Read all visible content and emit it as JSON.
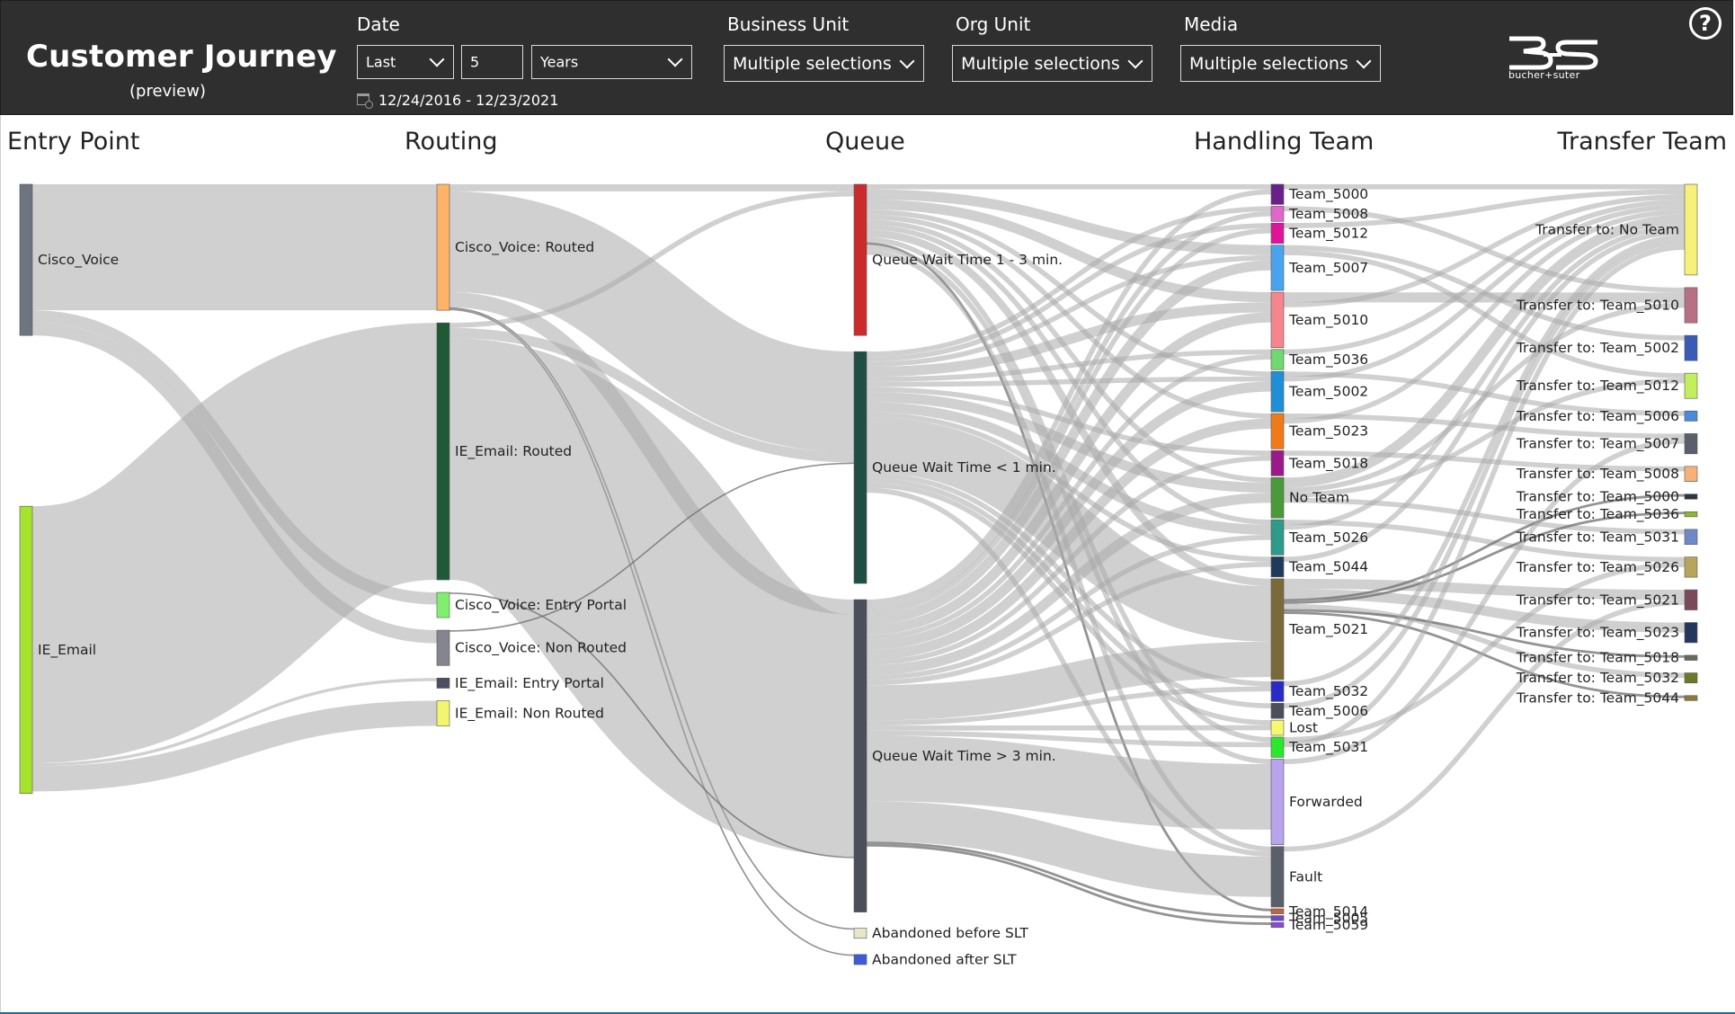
{
  "header": {
    "title": "Customer Journey",
    "subtitle": "(preview)",
    "date_label": "Date",
    "date_mode": "Last",
    "date_count": "5",
    "date_unit": "Years",
    "date_range": "12/24/2016 - 12/23/2021",
    "business_unit_label": "Business Unit",
    "business_unit_value": "Multiple selections",
    "org_unit_label": "Org Unit",
    "org_unit_value": "Multiple selections",
    "media_label": "Media",
    "media_value": "Multiple selections",
    "logo_text": "bucher+suter",
    "help_icon": "question-circle-icon"
  },
  "colors": {
    "header_bg": "#2f2f2f",
    "link": "#7d7d7d"
  },
  "chart_data": {
    "type": "sankey",
    "columns": [
      "Entry Point",
      "Routing",
      "Queue",
      "Handling Team",
      "Transfer Team"
    ],
    "nodes": [
      {
        "id": "cisco_voice",
        "label": "Cisco_Voice",
        "col": 0,
        "value": 30,
        "color": "#6e7480"
      },
      {
        "id": "ie_email",
        "label": "IE_Email",
        "col": 0,
        "value": 57,
        "color": "#a6e22e"
      },
      {
        "id": "r_cv_routed",
        "label": "Cisco_Voice: Routed",
        "col": 1,
        "value": 25,
        "color": "#ffb366"
      },
      {
        "id": "r_ie_routed",
        "label": "IE_Email: Routed",
        "col": 1,
        "value": 51,
        "color": "#1f5a36"
      },
      {
        "id": "r_cv_portal",
        "label": "Cisco_Voice: Entry Portal",
        "col": 1,
        "value": 5,
        "color": "#7ef06e"
      },
      {
        "id": "r_cv_nonrouted",
        "label": "Cisco_Voice: Non Routed",
        "col": 1,
        "value": 7,
        "color": "#85858f"
      },
      {
        "id": "r_ie_portal",
        "label": "IE_Email: Entry Portal",
        "col": 1,
        "value": 2,
        "color": "#4a5060"
      },
      {
        "id": "r_ie_nonrouted",
        "label": "IE_Email: Non Routed",
        "col": 1,
        "value": 5,
        "color": "#f2f56e"
      },
      {
        "id": "q_1_3",
        "label": "Queue Wait Time 1 - 3 min.",
        "col": 2,
        "value": 30,
        "color": "#cc2b2b"
      },
      {
        "id": "q_lt1",
        "label": "Queue Wait Time < 1 min.",
        "col": 2,
        "value": 46,
        "color": "#1f4e44"
      },
      {
        "id": "q_gt3",
        "label": "Queue Wait Time > 3 min.",
        "col": 2,
        "value": 62,
        "color": "#4a4f5a"
      },
      {
        "id": "q_ab_before",
        "label": "Abandoned before SLT",
        "col": 2,
        "value": 2,
        "color": "#e8e6c8"
      },
      {
        "id": "q_ab_after",
        "label": "Abandoned after SLT",
        "col": 2,
        "value": 2,
        "color": "#3e5bd6"
      },
      {
        "id": "h_5000",
        "label": "Team_5000",
        "col": 3,
        "value": 4,
        "color": "#6a1f8a"
      },
      {
        "id": "h_5008",
        "label": "Team_5008",
        "col": 3,
        "value": 3,
        "color": "#e066c8"
      },
      {
        "id": "h_5012",
        "label": "Team_5012",
        "col": 3,
        "value": 4,
        "color": "#e0139a"
      },
      {
        "id": "h_5007",
        "label": "Team_5007",
        "col": 3,
        "value": 9,
        "color": "#4aa3ef"
      },
      {
        "id": "h_5010",
        "label": "Team_5010",
        "col": 3,
        "value": 11,
        "color": "#f7858e"
      },
      {
        "id": "h_5036",
        "label": "Team_5036",
        "col": 3,
        "value": 4,
        "color": "#6fd86f"
      },
      {
        "id": "h_5002",
        "label": "Team_5002",
        "col": 3,
        "value": 8,
        "color": "#1f8fd8"
      },
      {
        "id": "h_5023",
        "label": "Team_5023",
        "col": 3,
        "value": 7,
        "color": "#f07a1a"
      },
      {
        "id": "h_5018",
        "label": "Team_5018",
        "col": 3,
        "value": 5,
        "color": "#9a1a8a"
      },
      {
        "id": "h_noteam",
        "label": "No Team",
        "col": 3,
        "value": 8,
        "color": "#4a9a3a"
      },
      {
        "id": "h_5026",
        "label": "Team_5026",
        "col": 3,
        "value": 7,
        "color": "#2e9a8a"
      },
      {
        "id": "h_5044",
        "label": "Team_5044",
        "col": 3,
        "value": 4,
        "color": "#1f3a5a"
      },
      {
        "id": "h_5021",
        "label": "Team_5021",
        "col": 3,
        "value": 20,
        "color": "#7a6a3a"
      },
      {
        "id": "h_5032",
        "label": "Team_5032",
        "col": 3,
        "value": 4,
        "color": "#2a2ac8"
      },
      {
        "id": "h_5006",
        "label": "Team_5006",
        "col": 3,
        "value": 3,
        "color": "#4a4f5a"
      },
      {
        "id": "h_lost",
        "label": "Lost",
        "col": 3,
        "value": 3,
        "color": "#f8f870"
      },
      {
        "id": "h_5031",
        "label": "Team_5031",
        "col": 3,
        "value": 4,
        "color": "#2ae82a"
      },
      {
        "id": "h_forwarded",
        "label": "Forwarded",
        "col": 3,
        "value": 17,
        "color": "#b7a4ec"
      },
      {
        "id": "h_fault",
        "label": "Fault",
        "col": 3,
        "value": 12,
        "color": "#5a5f6a"
      },
      {
        "id": "h_5014",
        "label": "Team_5014",
        "col": 3,
        "value": 1,
        "color": "#c0643a"
      },
      {
        "id": "h_5005",
        "label": "Team_5005",
        "col": 3,
        "value": 1,
        "color": "#6a4ac8"
      },
      {
        "id": "h_5059",
        "label": "Team_5059",
        "col": 3,
        "value": 1,
        "color": "#8a4ad8"
      },
      {
        "id": "t_noteam",
        "label": "Transfer to: No Team",
        "col": 4,
        "value": 18,
        "color": "#f7f07a"
      },
      {
        "id": "t_5010",
        "label": "Transfer to: Team_5010",
        "col": 4,
        "value": 7,
        "color": "#b87085"
      },
      {
        "id": "t_5002",
        "label": "Transfer to: Team_5002",
        "col": 4,
        "value": 5,
        "color": "#3a5ab8"
      },
      {
        "id": "t_5012",
        "label": "Transfer to: Team_5012",
        "col": 4,
        "value": 5,
        "color": "#c2ef5e"
      },
      {
        "id": "t_5006",
        "label": "Transfer to: Team_5006",
        "col": 4,
        "value": 2,
        "color": "#4a8ad8"
      },
      {
        "id": "t_5007",
        "label": "Transfer to: Team_5007",
        "col": 4,
        "value": 4,
        "color": "#5a5f6a"
      },
      {
        "id": "t_5008",
        "label": "Transfer to: Team_5008",
        "col": 4,
        "value": 3,
        "color": "#f7b07a"
      },
      {
        "id": "t_5000",
        "label": "Transfer to: Team_5000",
        "col": 4,
        "value": 1,
        "color": "#2e3440"
      },
      {
        "id": "t_5036",
        "label": "Transfer to: Team_5036",
        "col": 4,
        "value": 1,
        "color": "#8ab82e"
      },
      {
        "id": "t_5031",
        "label": "Transfer to: Team_5031",
        "col": 4,
        "value": 3,
        "color": "#7088c8"
      },
      {
        "id": "t_5026",
        "label": "Transfer to: Team_5026",
        "col": 4,
        "value": 4,
        "color": "#b8a45a"
      },
      {
        "id": "t_5021",
        "label": "Transfer to: Team_5021",
        "col": 4,
        "value": 4,
        "color": "#7a4a5a"
      },
      {
        "id": "t_5023",
        "label": "Transfer to: Team_5023",
        "col": 4,
        "value": 4,
        "color": "#24365e"
      },
      {
        "id": "t_5018",
        "label": "Transfer to: Team_5018",
        "col": 4,
        "value": 1,
        "color": "#6a6a5a"
      },
      {
        "id": "t_5032",
        "label": "Transfer to: Team_5032",
        "col": 4,
        "value": 2,
        "color": "#6a7a2a"
      },
      {
        "id": "t_5044",
        "label": "Transfer to: Team_5044",
        "col": 4,
        "value": 1,
        "color": "#8a7a3a"
      }
    ],
    "links": [
      [
        "cisco_voice",
        "r_cv_routed",
        25
      ],
      [
        "cisco_voice",
        "r_cv_portal",
        2.4
      ],
      [
        "cisco_voice",
        "r_cv_nonrouted",
        2.6
      ],
      [
        "ie_email",
        "r_ie_routed",
        51
      ],
      [
        "ie_email",
        "r_ie_portal",
        0.6
      ],
      [
        "ie_email",
        "r_ie_nonrouted",
        5
      ],
      [
        "r_cv_routed",
        "q_1_3",
        1.4
      ],
      [
        "r_cv_routed",
        "q_lt1",
        20
      ],
      [
        "r_cv_routed",
        "q_gt3",
        3
      ],
      [
        "r_cv_routed",
        "q_ab_before",
        0.3
      ],
      [
        "r_cv_routed",
        "q_ab_after",
        0.3
      ],
      [
        "r_ie_routed",
        "q_1_3",
        1
      ],
      [
        "r_ie_routed",
        "q_lt1",
        2
      ],
      [
        "r_ie_routed",
        "q_gt3",
        48
      ],
      [
        "r_cv_portal",
        "q_gt3",
        0.3
      ],
      [
        "r_cv_nonrouted",
        "q_lt1",
        0.3
      ],
      [
        "q_1_3",
        "h_5000",
        1
      ],
      [
        "q_1_3",
        "h_5007",
        2
      ],
      [
        "q_1_3",
        "h_5010",
        2
      ],
      [
        "q_1_3",
        "h_5002",
        1
      ],
      [
        "q_1_3",
        "h_5023",
        1
      ],
      [
        "q_1_3",
        "h_noteam",
        1
      ],
      [
        "q_1_3",
        "h_5026",
        1
      ],
      [
        "q_1_3",
        "h_5021",
        1.5
      ],
      [
        "q_1_3",
        "h_5031",
        1
      ],
      [
        "q_1_3",
        "h_5014",
        0.5
      ],
      [
        "q_1_3",
        "h_forwarded",
        1
      ],
      [
        "q_1_3",
        "h_fault",
        1
      ],
      [
        "q_lt1",
        "h_5008",
        1
      ],
      [
        "q_lt1",
        "h_5012",
        1
      ],
      [
        "q_lt1",
        "h_5007",
        1
      ],
      [
        "q_lt1",
        "h_5010",
        2
      ],
      [
        "q_lt1",
        "h_5036",
        1
      ],
      [
        "q_lt1",
        "h_5002",
        1
      ],
      [
        "q_lt1",
        "h_5018",
        1
      ],
      [
        "q_lt1",
        "h_noteam",
        2
      ],
      [
        "q_lt1",
        "h_5026",
        2
      ],
      [
        "q_lt1",
        "h_5044",
        1
      ],
      [
        "q_lt1",
        "h_5021",
        11
      ],
      [
        "q_lt1",
        "h_5032",
        1
      ],
      [
        "q_lt1",
        "h_5006",
        1
      ],
      [
        "q_lt1",
        "h_lost",
        1
      ],
      [
        "q_lt1",
        "h_fault",
        1
      ],
      [
        "q_gt3",
        "h_5000",
        1
      ],
      [
        "q_gt3",
        "h_5008",
        1
      ],
      [
        "q_gt3",
        "h_5012",
        1
      ],
      [
        "q_gt3",
        "h_5007",
        2
      ],
      [
        "q_gt3",
        "h_5010",
        2
      ],
      [
        "q_gt3",
        "h_5036",
        1
      ],
      [
        "q_gt3",
        "h_5002",
        2
      ],
      [
        "q_gt3",
        "h_5023",
        2
      ],
      [
        "q_gt3",
        "h_5018",
        1
      ],
      [
        "q_gt3",
        "h_noteam",
        2
      ],
      [
        "q_gt3",
        "h_5026",
        1
      ],
      [
        "q_gt3",
        "h_5044",
        1
      ],
      [
        "q_gt3",
        "h_5021",
        7
      ],
      [
        "q_gt3",
        "h_5032",
        1
      ],
      [
        "q_gt3",
        "h_lost",
        1
      ],
      [
        "q_gt3",
        "h_5031",
        1
      ],
      [
        "q_gt3",
        "h_forwarded",
        13
      ],
      [
        "q_gt3",
        "h_fault",
        8
      ],
      [
        "q_gt3",
        "h_5005",
        0.5
      ],
      [
        "q_gt3",
        "h_5059",
        0.5
      ],
      [
        "h_5000",
        "t_noteam",
        1
      ],
      [
        "h_5008",
        "t_5010",
        1
      ],
      [
        "h_5012",
        "t_noteam",
        1
      ],
      [
        "h_5007",
        "t_5002",
        1
      ],
      [
        "h_5007",
        "t_5012",
        1
      ],
      [
        "h_5010",
        "t_5010",
        2
      ],
      [
        "h_5010",
        "t_noteam",
        1
      ],
      [
        "h_5036",
        "t_noteam",
        1
      ],
      [
        "h_5002",
        "t_5006",
        1
      ],
      [
        "h_5002",
        "t_noteam",
        1
      ],
      [
        "h_5023",
        "t_5007",
        1
      ],
      [
        "h_5023",
        "t_noteam",
        1
      ],
      [
        "h_5018",
        "t_5008",
        1
      ],
      [
        "h_noteam",
        "t_noteam",
        2
      ],
      [
        "h_noteam",
        "t_5010",
        1
      ],
      [
        "h_noteam",
        "t_5012",
        1
      ],
      [
        "h_noteam",
        "t_5031",
        1
      ],
      [
        "h_5026",
        "t_5026",
        1
      ],
      [
        "h_5026",
        "t_noteam",
        1
      ],
      [
        "h_5044",
        "t_noteam",
        1
      ],
      [
        "h_5021",
        "t_5021",
        2
      ],
      [
        "h_5021",
        "t_5023",
        2
      ],
      [
        "h_5021",
        "t_5000",
        0.5
      ],
      [
        "h_5021",
        "t_5036",
        0.5
      ],
      [
        "h_5021",
        "t_5032",
        1
      ],
      [
        "h_5021",
        "t_5018",
        0.5
      ],
      [
        "h_5021",
        "t_5044",
        0.5
      ],
      [
        "h_5032",
        "t_noteam",
        1
      ],
      [
        "h_5006",
        "t_noteam",
        1
      ],
      [
        "h_5031",
        "t_5026",
        1
      ],
      [
        "h_5031",
        "t_noteam",
        1
      ],
      [
        "h_forwarded",
        "t_5007",
        1
      ],
      [
        "h_fault",
        "t_5021",
        1
      ]
    ]
  }
}
